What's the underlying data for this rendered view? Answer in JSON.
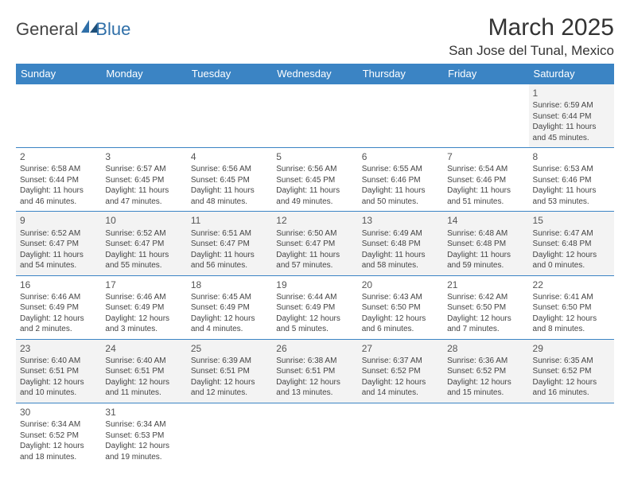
{
  "brand": {
    "general": "General",
    "blue": "Blue"
  },
  "title": "March 2025",
  "location": "San Jose del Tunal, Mexico",
  "colors": {
    "header_bg": "#3b84c4",
    "header_fg": "#ffffff",
    "rule": "#3b84c4",
    "alt_row": "#f3f3f3"
  },
  "day_headers": [
    "Sunday",
    "Monday",
    "Tuesday",
    "Wednesday",
    "Thursday",
    "Friday",
    "Saturday"
  ],
  "weeks": [
    [
      null,
      null,
      null,
      null,
      null,
      null,
      {
        "n": "1",
        "sr": "Sunrise: 6:59 AM",
        "ss": "Sunset: 6:44 PM",
        "dl": "Daylight: 11 hours and 45 minutes."
      }
    ],
    [
      {
        "n": "2",
        "sr": "Sunrise: 6:58 AM",
        "ss": "Sunset: 6:44 PM",
        "dl": "Daylight: 11 hours and 46 minutes."
      },
      {
        "n": "3",
        "sr": "Sunrise: 6:57 AM",
        "ss": "Sunset: 6:45 PM",
        "dl": "Daylight: 11 hours and 47 minutes."
      },
      {
        "n": "4",
        "sr": "Sunrise: 6:56 AM",
        "ss": "Sunset: 6:45 PM",
        "dl": "Daylight: 11 hours and 48 minutes."
      },
      {
        "n": "5",
        "sr": "Sunrise: 6:56 AM",
        "ss": "Sunset: 6:45 PM",
        "dl": "Daylight: 11 hours and 49 minutes."
      },
      {
        "n": "6",
        "sr": "Sunrise: 6:55 AM",
        "ss": "Sunset: 6:46 PM",
        "dl": "Daylight: 11 hours and 50 minutes."
      },
      {
        "n": "7",
        "sr": "Sunrise: 6:54 AM",
        "ss": "Sunset: 6:46 PM",
        "dl": "Daylight: 11 hours and 51 minutes."
      },
      {
        "n": "8",
        "sr": "Sunrise: 6:53 AM",
        "ss": "Sunset: 6:46 PM",
        "dl": "Daylight: 11 hours and 53 minutes."
      }
    ],
    [
      {
        "n": "9",
        "sr": "Sunrise: 6:52 AM",
        "ss": "Sunset: 6:47 PM",
        "dl": "Daylight: 11 hours and 54 minutes."
      },
      {
        "n": "10",
        "sr": "Sunrise: 6:52 AM",
        "ss": "Sunset: 6:47 PM",
        "dl": "Daylight: 11 hours and 55 minutes."
      },
      {
        "n": "11",
        "sr": "Sunrise: 6:51 AM",
        "ss": "Sunset: 6:47 PM",
        "dl": "Daylight: 11 hours and 56 minutes."
      },
      {
        "n": "12",
        "sr": "Sunrise: 6:50 AM",
        "ss": "Sunset: 6:47 PM",
        "dl": "Daylight: 11 hours and 57 minutes."
      },
      {
        "n": "13",
        "sr": "Sunrise: 6:49 AM",
        "ss": "Sunset: 6:48 PM",
        "dl": "Daylight: 11 hours and 58 minutes."
      },
      {
        "n": "14",
        "sr": "Sunrise: 6:48 AM",
        "ss": "Sunset: 6:48 PM",
        "dl": "Daylight: 11 hours and 59 minutes."
      },
      {
        "n": "15",
        "sr": "Sunrise: 6:47 AM",
        "ss": "Sunset: 6:48 PM",
        "dl": "Daylight: 12 hours and 0 minutes."
      }
    ],
    [
      {
        "n": "16",
        "sr": "Sunrise: 6:46 AM",
        "ss": "Sunset: 6:49 PM",
        "dl": "Daylight: 12 hours and 2 minutes."
      },
      {
        "n": "17",
        "sr": "Sunrise: 6:46 AM",
        "ss": "Sunset: 6:49 PM",
        "dl": "Daylight: 12 hours and 3 minutes."
      },
      {
        "n": "18",
        "sr": "Sunrise: 6:45 AM",
        "ss": "Sunset: 6:49 PM",
        "dl": "Daylight: 12 hours and 4 minutes."
      },
      {
        "n": "19",
        "sr": "Sunrise: 6:44 AM",
        "ss": "Sunset: 6:49 PM",
        "dl": "Daylight: 12 hours and 5 minutes."
      },
      {
        "n": "20",
        "sr": "Sunrise: 6:43 AM",
        "ss": "Sunset: 6:50 PM",
        "dl": "Daylight: 12 hours and 6 minutes."
      },
      {
        "n": "21",
        "sr": "Sunrise: 6:42 AM",
        "ss": "Sunset: 6:50 PM",
        "dl": "Daylight: 12 hours and 7 minutes."
      },
      {
        "n": "22",
        "sr": "Sunrise: 6:41 AM",
        "ss": "Sunset: 6:50 PM",
        "dl": "Daylight: 12 hours and 8 minutes."
      }
    ],
    [
      {
        "n": "23",
        "sr": "Sunrise: 6:40 AM",
        "ss": "Sunset: 6:51 PM",
        "dl": "Daylight: 12 hours and 10 minutes."
      },
      {
        "n": "24",
        "sr": "Sunrise: 6:40 AM",
        "ss": "Sunset: 6:51 PM",
        "dl": "Daylight: 12 hours and 11 minutes."
      },
      {
        "n": "25",
        "sr": "Sunrise: 6:39 AM",
        "ss": "Sunset: 6:51 PM",
        "dl": "Daylight: 12 hours and 12 minutes."
      },
      {
        "n": "26",
        "sr": "Sunrise: 6:38 AM",
        "ss": "Sunset: 6:51 PM",
        "dl": "Daylight: 12 hours and 13 minutes."
      },
      {
        "n": "27",
        "sr": "Sunrise: 6:37 AM",
        "ss": "Sunset: 6:52 PM",
        "dl": "Daylight: 12 hours and 14 minutes."
      },
      {
        "n": "28",
        "sr": "Sunrise: 6:36 AM",
        "ss": "Sunset: 6:52 PM",
        "dl": "Daylight: 12 hours and 15 minutes."
      },
      {
        "n": "29",
        "sr": "Sunrise: 6:35 AM",
        "ss": "Sunset: 6:52 PM",
        "dl": "Daylight: 12 hours and 16 minutes."
      }
    ],
    [
      {
        "n": "30",
        "sr": "Sunrise: 6:34 AM",
        "ss": "Sunset: 6:52 PM",
        "dl": "Daylight: 12 hours and 18 minutes."
      },
      {
        "n": "31",
        "sr": "Sunrise: 6:34 AM",
        "ss": "Sunset: 6:53 PM",
        "dl": "Daylight: 12 hours and 19 minutes."
      },
      null,
      null,
      null,
      null,
      null
    ]
  ]
}
